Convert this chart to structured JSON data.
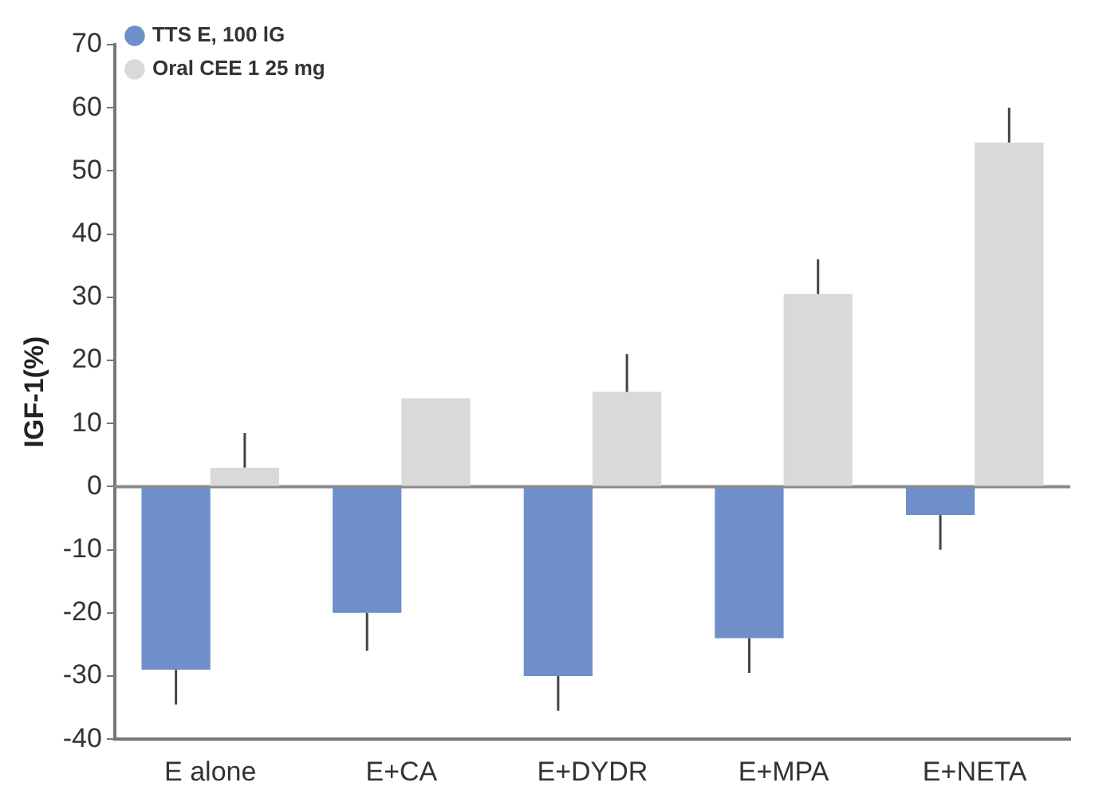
{
  "chart_data": {
    "type": "bar",
    "ylabel": "IGF-1(%)",
    "categories": [
      "E alone",
      "E+CA",
      "E+DYDR",
      "E+MPA",
      "E+NETA"
    ],
    "series": [
      {
        "name": "TTS E, 100 lG",
        "color": "#6f8fca",
        "values": [
          -29,
          -20,
          -30,
          -24,
          -4.5
        ],
        "errors": [
          [
            -34.5,
            -29
          ],
          [
            -26,
            -20
          ],
          [
            -35.5,
            -30
          ],
          [
            -29.5,
            -24
          ],
          [
            -10,
            -4.5
          ]
        ]
      },
      {
        "name": "Oral CEE 1 25 mg",
        "color": "#d9d9d9",
        "values": [
          3,
          14,
          15,
          30.5,
          54.5
        ],
        "errors": [
          [
            3,
            8.5
          ],
          null,
          [
            15,
            21
          ],
          [
            30.5,
            36
          ],
          [
            54.5,
            60
          ]
        ]
      }
    ],
    "ylim": [
      -40,
      70
    ],
    "yticks": [
      -40,
      -30,
      -20,
      -10,
      0,
      10,
      20,
      30,
      40,
      50,
      60,
      70
    ],
    "ref_lines": [
      {
        "axis": "y",
        "value": 0,
        "color": "#8a8a8a"
      }
    ],
    "legend": "top left",
    "grid": false
  }
}
